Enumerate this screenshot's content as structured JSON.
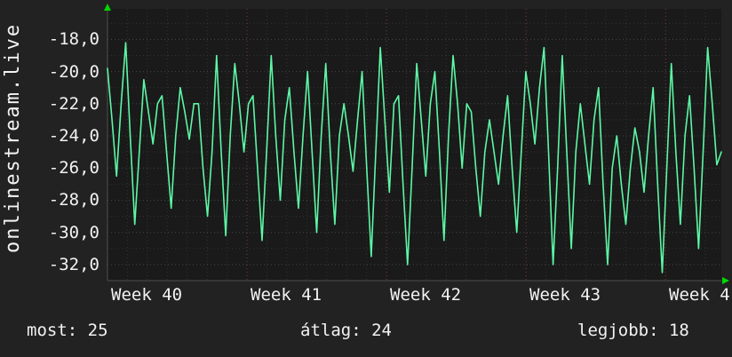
{
  "panel": {
    "background": "#222222"
  },
  "chart_data": {
    "type": "line",
    "title": "onlinestream.live",
    "plot_background": "#1a1a1a",
    "line_color": "#5df7a5",
    "axis_arrow_color": "#00d900",
    "grid": {
      "on": true,
      "minor_color": "#343434",
      "major_color": "#474747",
      "week_color": "#a04545"
    },
    "legend_position": "none",
    "ylim": [
      -33.0,
      -16.1
    ],
    "y_ticks": [
      {
        "label": "-18,0",
        "value": -18
      },
      {
        "label": "-20,0",
        "value": -20
      },
      {
        "label": "-22,0",
        "value": -22
      },
      {
        "label": "-24,0",
        "value": -24
      },
      {
        "label": "-26,0",
        "value": -26
      },
      {
        "label": "-28,0",
        "value": -28
      },
      {
        "label": "-30,0",
        "value": -30
      },
      {
        "label": "-32,0",
        "value": -32
      }
    ],
    "x_ticks": [
      {
        "label": "Week 40"
      },
      {
        "label": "Week 41"
      },
      {
        "label": "Week 42"
      },
      {
        "label": "Week 43"
      },
      {
        "label": "Week 4"
      }
    ],
    "values": [
      -19.8,
      -23,
      -26.5,
      -22,
      -18.2,
      -24,
      -29.5,
      -25,
      -20.5,
      -22.5,
      -24.5,
      -22,
      -21.5,
      -25,
      -28.5,
      -24,
      -21,
      -22.5,
      -24.2,
      -22,
      -22,
      -26,
      -29,
      -25,
      -19,
      -25,
      -30.2,
      -24,
      -19.5,
      -22,
      -25,
      -22,
      -21.5,
      -26,
      -30.5,
      -25,
      -19,
      -24,
      -28,
      -23,
      -21,
      -25,
      -28.5,
      -24,
      -20,
      -25,
      -30,
      -24,
      -19.5,
      -25,
      -29.5,
      -24,
      -22,
      -24,
      -26.2,
      -23,
      -20,
      -26,
      -31.5,
      -25,
      -18.5,
      -23,
      -27.5,
      -22,
      -21.5,
      -27,
      -32,
      -26,
      -19.5,
      -23,
      -26.5,
      -22,
      -20,
      -25,
      -30.5,
      -24,
      -19,
      -22,
      -26,
      -22,
      -22.5,
      -26,
      -29,
      -25,
      -23,
      -25,
      -27,
      -24,
      -21.5,
      -26,
      -30,
      -25,
      -20,
      -22,
      -24.5,
      -21,
      -18.5,
      -25,
      -32,
      -26,
      -19,
      -25,
      -31,
      -25,
      -22,
      -24.5,
      -27,
      -23,
      -21,
      -27,
      -32,
      -26,
      -24,
      -27,
      -29.5,
      -26,
      -23.5,
      -25,
      -27.5,
      -24,
      -21,
      -27,
      -32.5,
      -26,
      -19.5,
      -25,
      -29.5,
      -24,
      -21.5,
      -26,
      -31,
      -25,
      -18.5,
      -22,
      -25.8,
      -25
    ]
  },
  "footer": {
    "stats": [
      {
        "label": "most:",
        "value": "25"
      },
      {
        "label": "átlag:",
        "value": "24"
      },
      {
        "label": "legjobb:",
        "value": "18"
      }
    ]
  }
}
